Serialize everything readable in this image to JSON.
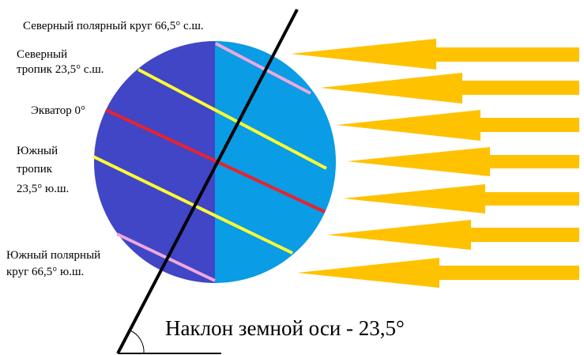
{
  "labels": {
    "arctic_circle": "Северный полярный круг 66,5° с.ш.",
    "tropic_cancer_1": "Северный",
    "tropic_cancer_2": "тропик 23,5° с.ш.",
    "equator": "Экватор 0°",
    "tropic_capricorn_1": "Южный",
    "tropic_capricorn_2": "тропик",
    "tropic_capricorn_3": "23,5° ю.ш.",
    "antarctic_circle_1": "Южный полярный",
    "antarctic_circle_2": "круг 66,5° ю.ш.",
    "axis_tilt": "Наклон земной оси - 23,5°"
  },
  "colors": {
    "night_side": "#4046c6",
    "day_side": "#0a9ce4",
    "tropic_lines": "#ffff33",
    "equator_line": "#e8232c",
    "polar_lines": "#f0a8dc",
    "axis": "#000000",
    "sun_rays": "#ffc200"
  }
}
